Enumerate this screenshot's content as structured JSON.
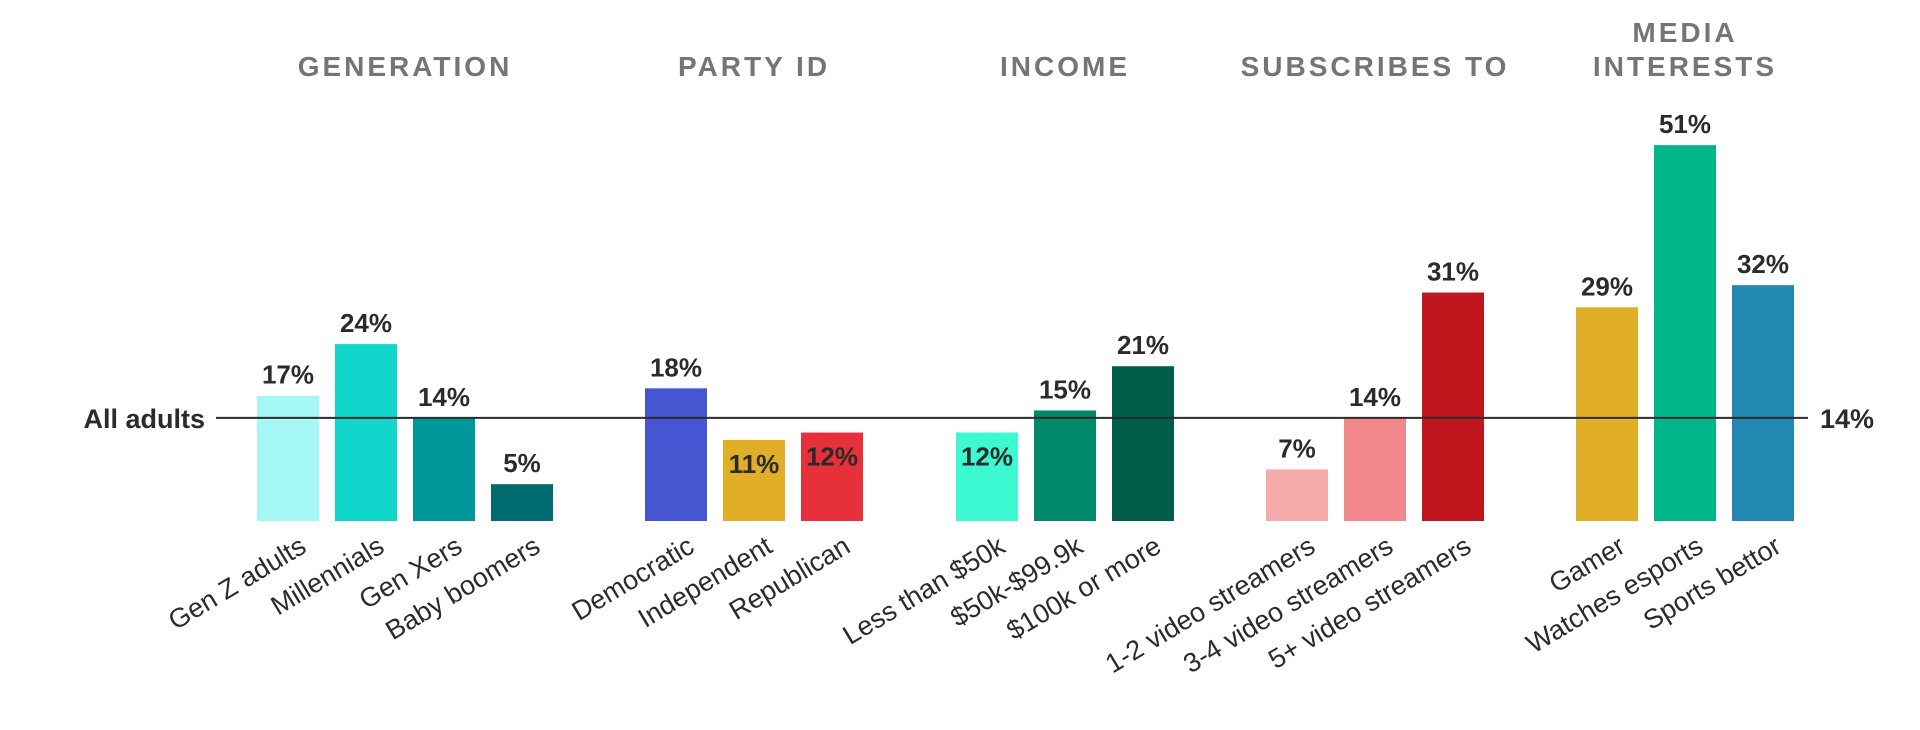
{
  "chart_data": {
    "type": "bar",
    "ylim": [
      0,
      55
    ],
    "reference": {
      "label": "All adults",
      "value": 14,
      "value_label": "14%"
    },
    "groups": [
      {
        "title": [
          "GENERATION"
        ],
        "categories": [
          "Gen Z adults",
          "Millennials",
          "Gen Xers",
          "Baby boomers"
        ],
        "values": [
          17,
          24,
          14,
          5
        ],
        "labels": [
          "17%",
          "24%",
          "14%",
          "5%"
        ],
        "colors": [
          "#A6F8F6",
          "#10D6CC",
          "#00979A",
          "#006B6E"
        ]
      },
      {
        "title": [
          "PARTY ID"
        ],
        "categories": [
          "Democratic",
          "Independent",
          "Republican"
        ],
        "values": [
          18,
          11,
          12
        ],
        "labels": [
          "18%",
          "11%",
          "12%"
        ],
        "colors": [
          "#4656D0",
          "#E1AF27",
          "#E6303A"
        ]
      },
      {
        "title": [
          "INCOME"
        ],
        "categories": [
          "Less than $50k",
          "$50k-$99.9k",
          "$100k or more"
        ],
        "values": [
          12,
          15,
          21
        ],
        "labels": [
          "12%",
          "15%",
          "21%"
        ],
        "colors": [
          "#3CF9D1",
          "#008968",
          "#005E4B"
        ]
      },
      {
        "title": [
          "SUBSCRIBES TO"
        ],
        "categories": [
          "1-2 video streamers",
          "3-4 video streamers",
          "5+ video streamers"
        ],
        "values": [
          7,
          14,
          31
        ],
        "labels": [
          "7%",
          "14%",
          "31%"
        ],
        "colors": [
          "#F5ABAB",
          "#F0878A",
          "#BF171D"
        ]
      },
      {
        "title": [
          "MEDIA",
          "INTERESTS"
        ],
        "categories": [
          "Gamer",
          "Watches esports",
          "Sports bettor"
        ],
        "values": [
          29,
          51,
          32
        ],
        "labels": [
          "29%",
          "51%",
          "32%"
        ],
        "colors": [
          "#E1AF27",
          "#00B68A",
          "#2389B3"
        ]
      }
    ]
  }
}
